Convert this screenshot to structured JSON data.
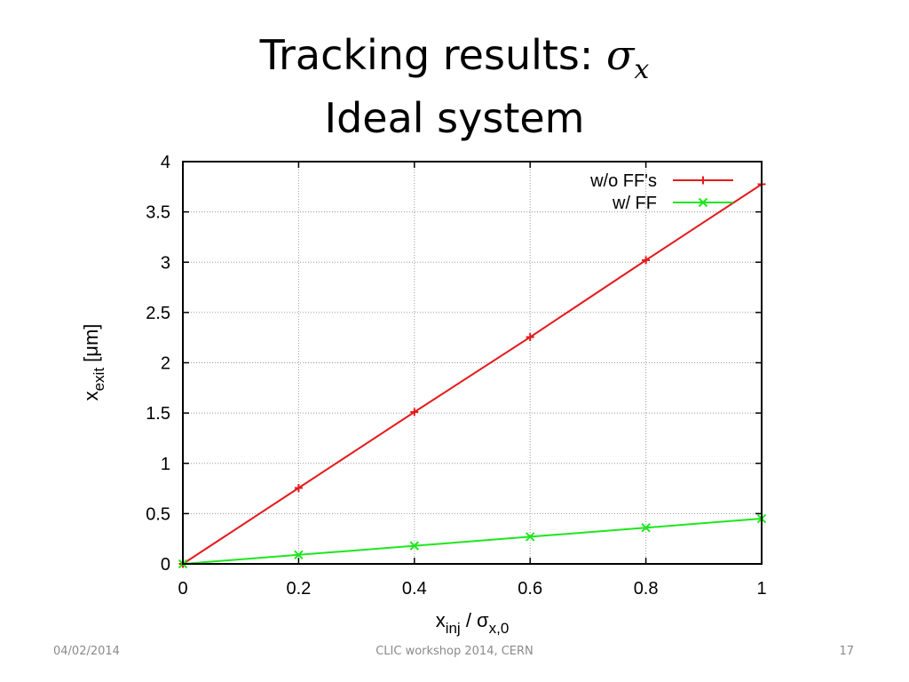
{
  "slide": {
    "title_line1_prefix": "Tracking results: ",
    "title_symbol": "σ",
    "title_symbol_subscript": "x",
    "title_line2": "Ideal system"
  },
  "footer": {
    "date": "04/02/2014",
    "center": "CLIC workshop 2014, CERN",
    "page": "17"
  },
  "chart_data": {
    "type": "line",
    "xlabel": {
      "base": "x",
      "sub": "inj",
      "mid": " / σ",
      "sub2": "x,0"
    },
    "ylabel": {
      "base": "x",
      "sub": "exit",
      "unit": " [μm]"
    },
    "xlim": [
      0,
      1
    ],
    "ylim": [
      0,
      4
    ],
    "x_ticks": [
      0,
      0.2,
      0.4,
      0.6,
      0.8,
      1
    ],
    "x_tick_labels": [
      "0",
      "0.2",
      "0.4",
      "0.6",
      "0.8",
      "1"
    ],
    "y_ticks": [
      0,
      0.5,
      1,
      1.5,
      2,
      2.5,
      3,
      3.5,
      4
    ],
    "y_tick_labels": [
      "0",
      "0.5",
      "1",
      "1.5",
      "2",
      "2.5",
      "3",
      "3.5",
      "4"
    ],
    "grid": true,
    "legend_position": "top-right",
    "series": [
      {
        "name": "w/o FF's",
        "color": "#e41a1c",
        "marker": "plus",
        "x": [
          0,
          0.2,
          0.4,
          0.6,
          0.8,
          1
        ],
        "values": [
          0,
          0.755,
          1.51,
          2.255,
          3.02,
          3.775
        ]
      },
      {
        "name": "w/ FF",
        "color": "#1ee61e",
        "marker": "cross",
        "x": [
          0,
          0.2,
          0.4,
          0.6,
          0.8,
          1
        ],
        "values": [
          0,
          0.09,
          0.18,
          0.27,
          0.36,
          0.45
        ]
      }
    ]
  }
}
